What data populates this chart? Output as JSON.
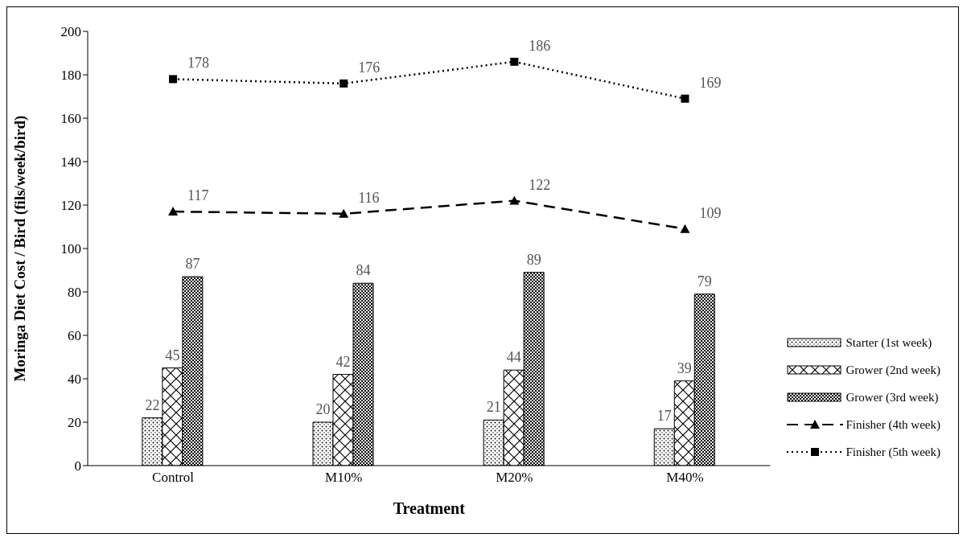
{
  "chart_data": {
    "type": "bar",
    "xlabel": "Treatment",
    "ylabel": "Moringa Diet Cost / Bird (fils/week/bird)",
    "categories": [
      "Control",
      "M10%",
      "M20%",
      "M40%"
    ],
    "series": [
      {
        "name": "Starter (1st week)",
        "color": "#000000",
        "values": [
          22,
          20,
          21,
          17
        ]
      },
      {
        "name": "Grower (2nd week)",
        "color": "#000000",
        "values": [
          45,
          42,
          44,
          39
        ]
      },
      {
        "name": "Grower (3rd week)",
        "color": "#000000",
        "values": [
          87,
          84,
          89,
          79
        ]
      },
      {
        "name": "Finisher (4th week)",
        "type": "line",
        "color": "#000000",
        "marker": "triangle",
        "line_style": "dashed",
        "values": [
          117,
          116,
          122,
          109
        ]
      },
      {
        "name": "Finisher (5th week)",
        "type": "line",
        "color": "#000000",
        "marker": "square",
        "line_style": "dotted",
        "values": [
          178,
          176,
          186,
          169
        ]
      }
    ],
    "ylim": [
      0,
      200
    ],
    "yticks": [
      0,
      20,
      40,
      60,
      80,
      100,
      120,
      140,
      160,
      180,
      200
    ],
    "legend": "right",
    "data_labels": true
  }
}
